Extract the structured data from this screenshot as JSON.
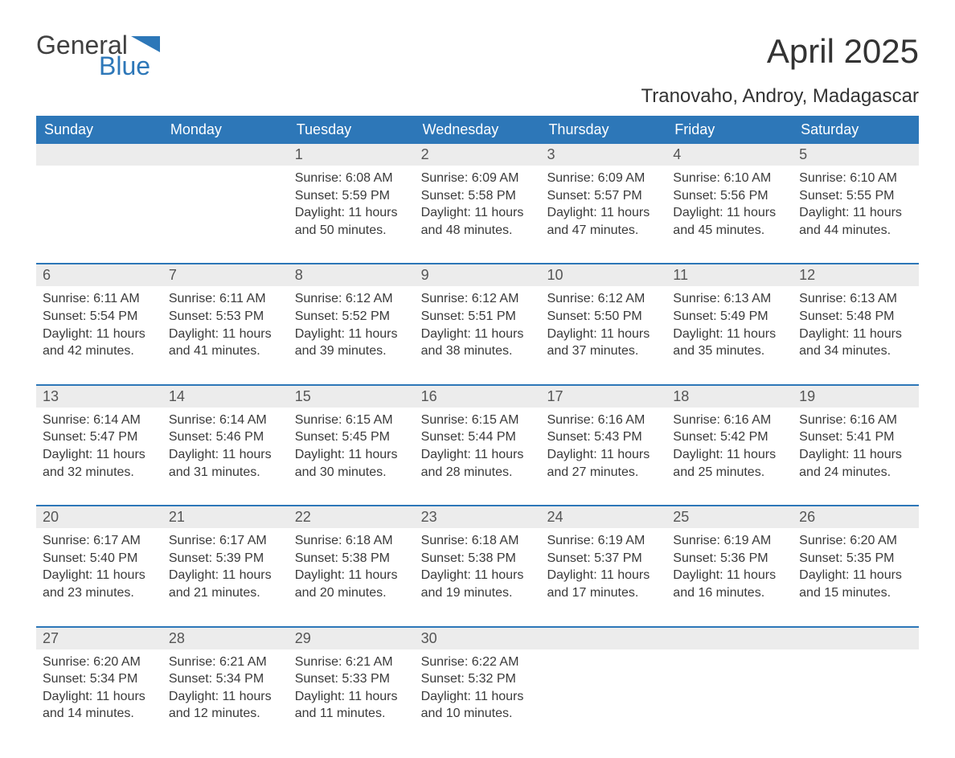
{
  "logo": {
    "general": "General",
    "blue": "Blue"
  },
  "title": "April 2025",
  "location": "Tranovaho, Androy, Madagascar",
  "colors": {
    "header_bg": "#2d77b8",
    "header_text": "#ffffff",
    "daynum_bg": "#ececec",
    "body_text": "#3a3a3a",
    "title_text": "#333333",
    "page_bg": "#ffffff",
    "week_border": "#2d77b8"
  },
  "day_headers": [
    "Sunday",
    "Monday",
    "Tuesday",
    "Wednesday",
    "Thursday",
    "Friday",
    "Saturday"
  ],
  "weeks": [
    [
      null,
      null,
      {
        "n": "1",
        "sunrise": "6:08 AM",
        "sunset": "5:59 PM",
        "daylight": "11 hours and 50 minutes."
      },
      {
        "n": "2",
        "sunrise": "6:09 AM",
        "sunset": "5:58 PM",
        "daylight": "11 hours and 48 minutes."
      },
      {
        "n": "3",
        "sunrise": "6:09 AM",
        "sunset": "5:57 PM",
        "daylight": "11 hours and 47 minutes."
      },
      {
        "n": "4",
        "sunrise": "6:10 AM",
        "sunset": "5:56 PM",
        "daylight": "11 hours and 45 minutes."
      },
      {
        "n": "5",
        "sunrise": "6:10 AM",
        "sunset": "5:55 PM",
        "daylight": "11 hours and 44 minutes."
      }
    ],
    [
      {
        "n": "6",
        "sunrise": "6:11 AM",
        "sunset": "5:54 PM",
        "daylight": "11 hours and 42 minutes."
      },
      {
        "n": "7",
        "sunrise": "6:11 AM",
        "sunset": "5:53 PM",
        "daylight": "11 hours and 41 minutes."
      },
      {
        "n": "8",
        "sunrise": "6:12 AM",
        "sunset": "5:52 PM",
        "daylight": "11 hours and 39 minutes."
      },
      {
        "n": "9",
        "sunrise": "6:12 AM",
        "sunset": "5:51 PM",
        "daylight": "11 hours and 38 minutes."
      },
      {
        "n": "10",
        "sunrise": "6:12 AM",
        "sunset": "5:50 PM",
        "daylight": "11 hours and 37 minutes."
      },
      {
        "n": "11",
        "sunrise": "6:13 AM",
        "sunset": "5:49 PM",
        "daylight": "11 hours and 35 minutes."
      },
      {
        "n": "12",
        "sunrise": "6:13 AM",
        "sunset": "5:48 PM",
        "daylight": "11 hours and 34 minutes."
      }
    ],
    [
      {
        "n": "13",
        "sunrise": "6:14 AM",
        "sunset": "5:47 PM",
        "daylight": "11 hours and 32 minutes."
      },
      {
        "n": "14",
        "sunrise": "6:14 AM",
        "sunset": "5:46 PM",
        "daylight": "11 hours and 31 minutes."
      },
      {
        "n": "15",
        "sunrise": "6:15 AM",
        "sunset": "5:45 PM",
        "daylight": "11 hours and 30 minutes."
      },
      {
        "n": "16",
        "sunrise": "6:15 AM",
        "sunset": "5:44 PM",
        "daylight": "11 hours and 28 minutes."
      },
      {
        "n": "17",
        "sunrise": "6:16 AM",
        "sunset": "5:43 PM",
        "daylight": "11 hours and 27 minutes."
      },
      {
        "n": "18",
        "sunrise": "6:16 AM",
        "sunset": "5:42 PM",
        "daylight": "11 hours and 25 minutes."
      },
      {
        "n": "19",
        "sunrise": "6:16 AM",
        "sunset": "5:41 PM",
        "daylight": "11 hours and 24 minutes."
      }
    ],
    [
      {
        "n": "20",
        "sunrise": "6:17 AM",
        "sunset": "5:40 PM",
        "daylight": "11 hours and 23 minutes."
      },
      {
        "n": "21",
        "sunrise": "6:17 AM",
        "sunset": "5:39 PM",
        "daylight": "11 hours and 21 minutes."
      },
      {
        "n": "22",
        "sunrise": "6:18 AM",
        "sunset": "5:38 PM",
        "daylight": "11 hours and 20 minutes."
      },
      {
        "n": "23",
        "sunrise": "6:18 AM",
        "sunset": "5:38 PM",
        "daylight": "11 hours and 19 minutes."
      },
      {
        "n": "24",
        "sunrise": "6:19 AM",
        "sunset": "5:37 PM",
        "daylight": "11 hours and 17 minutes."
      },
      {
        "n": "25",
        "sunrise": "6:19 AM",
        "sunset": "5:36 PM",
        "daylight": "11 hours and 16 minutes."
      },
      {
        "n": "26",
        "sunrise": "6:20 AM",
        "sunset": "5:35 PM",
        "daylight": "11 hours and 15 minutes."
      }
    ],
    [
      {
        "n": "27",
        "sunrise": "6:20 AM",
        "sunset": "5:34 PM",
        "daylight": "11 hours and 14 minutes."
      },
      {
        "n": "28",
        "sunrise": "6:21 AM",
        "sunset": "5:34 PM",
        "daylight": "11 hours and 12 minutes."
      },
      {
        "n": "29",
        "sunrise": "6:21 AM",
        "sunset": "5:33 PM",
        "daylight": "11 hours and 11 minutes."
      },
      {
        "n": "30",
        "sunrise": "6:22 AM",
        "sunset": "5:32 PM",
        "daylight": "11 hours and 10 minutes."
      },
      null,
      null,
      null
    ]
  ],
  "labels": {
    "sunrise": "Sunrise: ",
    "sunset": "Sunset: ",
    "daylight": "Daylight: "
  }
}
